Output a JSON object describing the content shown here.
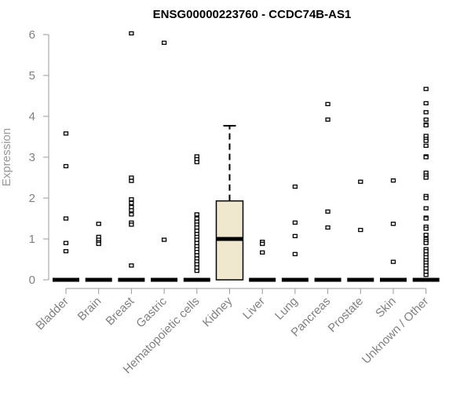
{
  "chart_data": {
    "type": "box",
    "title": "ENSG00000223760 - CCDC74B-AS1",
    "xlabel": "",
    "ylabel": "Expression",
    "ylim": [
      0,
      6.2
    ],
    "yticks": [
      0,
      1,
      2,
      3,
      4,
      5,
      6
    ],
    "categories": [
      "Bladder",
      "Brain",
      "Breast",
      "Gastric",
      "Hematopoietic cells",
      "Kidney",
      "Liver",
      "Lung",
      "Pancreas",
      "Prostate",
      "Skin",
      "Unknown / Other"
    ],
    "boxes": [
      {
        "category": "Bladder",
        "q1": 0,
        "median": 0,
        "q3": 0,
        "whisker_low": 0,
        "whisker_high": 0,
        "outliers": [
          3.58,
          2.78,
          1.5,
          0.9,
          0.7
        ]
      },
      {
        "category": "Brain",
        "q1": 0,
        "median": 0,
        "q3": 0,
        "whisker_low": 0,
        "whisker_high": 0,
        "outliers": [
          1.37,
          1.05,
          0.98,
          0.92,
          0.88
        ]
      },
      {
        "category": "Breast",
        "q1": 0,
        "median": 0,
        "q3": 0,
        "whisker_low": 0,
        "whisker_high": 0,
        "outliers": [
          6.03,
          2.5,
          2.42,
          1.97,
          1.88,
          1.78,
          1.7,
          1.6,
          1.4,
          1.35,
          0.35
        ]
      },
      {
        "category": "Gastric",
        "q1": 0,
        "median": 0,
        "q3": 0,
        "whisker_low": 0,
        "whisker_high": 0,
        "outliers": [
          5.8,
          0.98
        ]
      },
      {
        "category": "Hematopoietic cells",
        "q1": 0,
        "median": 0,
        "q3": 0,
        "whisker_low": 0,
        "whisker_high": 0,
        "outliers": [
          3.02,
          2.95,
          2.88,
          1.6,
          1.5,
          1.42,
          1.35,
          1.28,
          1.2,
          1.12,
          1.05,
          0.98,
          0.9,
          0.82,
          0.75,
          0.68,
          0.6,
          0.52,
          0.45,
          0.38,
          0.3,
          0.22
        ]
      },
      {
        "category": "Kidney",
        "q1": 0,
        "median": 1.0,
        "q3": 1.93,
        "whisker_low": 0,
        "whisker_high": 3.77,
        "outliers": []
      },
      {
        "category": "Liver",
        "q1": 0,
        "median": 0,
        "q3": 0,
        "whisker_low": 0,
        "whisker_high": 0,
        "outliers": [
          0.93,
          0.88,
          0.67
        ]
      },
      {
        "category": "Lung",
        "q1": 0,
        "median": 0,
        "q3": 0,
        "whisker_low": 0,
        "whisker_high": 0,
        "outliers": [
          2.28,
          1.4,
          1.07,
          0.63
        ]
      },
      {
        "category": "Pancreas",
        "q1": 0,
        "median": 0,
        "q3": 0,
        "whisker_low": 0,
        "whisker_high": 0,
        "outliers": [
          4.3,
          3.92,
          1.67,
          1.28
        ]
      },
      {
        "category": "Prostate",
        "q1": 0,
        "median": 0,
        "q3": 0,
        "whisker_low": 0,
        "whisker_high": 0,
        "outliers": [
          2.4,
          1.22
        ]
      },
      {
        "category": "Skin",
        "q1": 0,
        "median": 0,
        "q3": 0,
        "whisker_low": 0,
        "whisker_high": 0,
        "outliers": [
          2.43,
          1.37,
          0.44
        ]
      },
      {
        "category": "Unknown / Other",
        "q1": 0,
        "median": 0,
        "q3": 0,
        "whisker_low": 0,
        "whisker_high": 0,
        "outliers": [
          4.67,
          4.32,
          4.1,
          3.92,
          3.8,
          3.78,
          3.52,
          3.45,
          3.4,
          3.28,
          3.02,
          3.0,
          2.62,
          2.55,
          2.5,
          2.05,
          2.0,
          1.75,
          1.52,
          1.5,
          1.3,
          1.25,
          1.1,
          1.0,
          0.95,
          0.9,
          0.75,
          0.7,
          0.62,
          0.55,
          0.48,
          0.42,
          0.35,
          0.28,
          0.2,
          0.12
        ]
      }
    ],
    "colors": {
      "box_fill": "#efe8cf",
      "line": "#000000",
      "tick_text": "#808080",
      "axis_title": "#9a9a9a",
      "axis_line": "#9a9a9a"
    },
    "grid": false,
    "legend": "none"
  }
}
